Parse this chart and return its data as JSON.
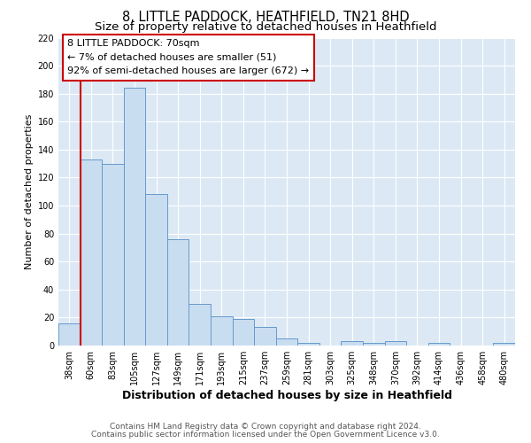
{
  "title": "8, LITTLE PADDOCK, HEATHFIELD, TN21 8HD",
  "subtitle": "Size of property relative to detached houses in Heathfield",
  "xlabel": "Distribution of detached houses by size in Heathfield",
  "ylabel": "Number of detached properties",
  "bar_labels": [
    "38sqm",
    "60sqm",
    "83sqm",
    "105sqm",
    "127sqm",
    "149sqm",
    "171sqm",
    "193sqm",
    "215sqm",
    "237sqm",
    "259sqm",
    "281sqm",
    "303sqm",
    "325sqm",
    "348sqm",
    "370sqm",
    "392sqm",
    "414sqm",
    "436sqm",
    "458sqm",
    "480sqm"
  ],
  "bar_values": [
    16,
    133,
    130,
    184,
    108,
    76,
    30,
    21,
    19,
    13,
    5,
    2,
    0,
    3,
    2,
    3,
    0,
    2,
    0,
    0,
    2
  ],
  "bar_color": "#c9ddf0",
  "bar_edge_color": "#6699cc",
  "ylim": [
    0,
    220
  ],
  "yticks": [
    0,
    20,
    40,
    60,
    80,
    100,
    120,
    140,
    160,
    180,
    200,
    220
  ],
  "vline_x_index": 1,
  "vline_color": "#cc0000",
  "annotation_title": "8 LITTLE PADDOCK: 70sqm",
  "annotation_line1": "← 7% of detached houses are smaller (51)",
  "annotation_line2": "92% of semi-detached houses are larger (672) →",
  "annotation_box_color": "#ffffff",
  "annotation_box_edge": "#cc0000",
  "footer1": "Contains HM Land Registry data © Crown copyright and database right 2024.",
  "footer2": "Contains public sector information licensed under the Open Government Licence v3.0.",
  "plot_bg_color": "#dce9f5",
  "fig_bg_color": "#ffffff",
  "grid_color": "#ffffff",
  "title_fontsize": 10.5,
  "subtitle_fontsize": 9.5,
  "xlabel_fontsize": 9,
  "ylabel_fontsize": 8,
  "tick_fontsize": 7,
  "annotation_fontsize": 8,
  "footer_fontsize": 6.5
}
